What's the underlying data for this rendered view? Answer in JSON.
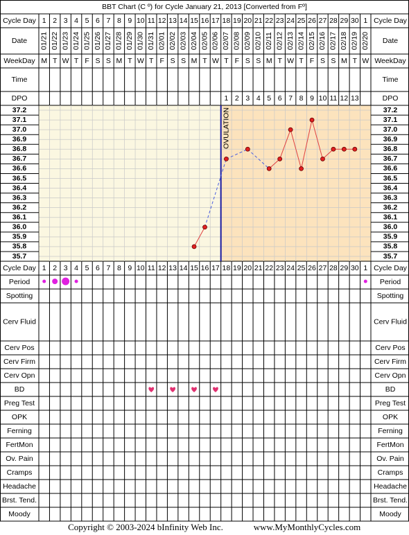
{
  "chart_data": {
    "type": "bbt",
    "title": "BBT Chart (C º) for Cycle January 21, 2013  [Converted from Fº]",
    "cycle_days": [
      1,
      2,
      3,
      4,
      5,
      6,
      7,
      8,
      9,
      10,
      11,
      12,
      13,
      14,
      15,
      16,
      17,
      18,
      19,
      20,
      21,
      22,
      23,
      24,
      25,
      26,
      27,
      28,
      29,
      30,
      1
    ],
    "dates": [
      "01/21",
      "01/22",
      "01/23",
      "01/24",
      "01/25",
      "01/26",
      "01/27",
      "01/28",
      "01/29",
      "01/30",
      "01/31",
      "02/01",
      "02/02",
      "02/03",
      "02/04",
      "02/05",
      "02/06",
      "02/07",
      "02/08",
      "02/09",
      "02/10",
      "02/11",
      "02/12",
      "02/13",
      "02/14",
      "02/15",
      "02/16",
      "02/17",
      "02/18",
      "02/19",
      "02/20"
    ],
    "weekdays": [
      "M",
      "T",
      "W",
      "T",
      "F",
      "S",
      "S",
      "M",
      "T",
      "W",
      "T",
      "F",
      "S",
      "S",
      "M",
      "T",
      "W",
      "T",
      "F",
      "S",
      "S",
      "M",
      "T",
      "W",
      "T",
      "F",
      "S",
      "S",
      "M",
      "T",
      "W"
    ],
    "dpo": [
      null,
      null,
      null,
      null,
      null,
      null,
      null,
      null,
      null,
      null,
      null,
      null,
      null,
      null,
      null,
      null,
      null,
      1,
      2,
      3,
      4,
      5,
      6,
      7,
      8,
      9,
      10,
      11,
      12,
      13,
      null
    ],
    "values": [
      null,
      null,
      null,
      null,
      null,
      null,
      null,
      null,
      null,
      null,
      null,
      null,
      null,
      null,
      35.8,
      36.0,
      null,
      36.7,
      null,
      36.8,
      null,
      36.6,
      36.7,
      37.0,
      36.6,
      37.1,
      36.7,
      36.8,
      36.8,
      36.8,
      null
    ],
    "ylim": [
      35.65,
      37.25
    ],
    "yticks": [
      37.2,
      37.1,
      {
        "value": 37,
        "label": "37.0"
      },
      36.9,
      36.8,
      36.7,
      36.6,
      36.5,
      36.4,
      36.3,
      36.2,
      36.1,
      {
        "value": 36,
        "label": "36.0"
      },
      35.9,
      35.8,
      35.7
    ],
    "ovulation_day": 17,
    "ovulation_label": "OVULATION",
    "top_rows": [
      "Cycle Day",
      "Date",
      "WeekDay",
      "Time",
      "DPO"
    ],
    "bottom_rows": [
      "Cycle Day",
      "Period",
      "Spotting",
      "Cerv Fluid",
      "Cerv Pos",
      "Cerv Firm",
      "Cerv Opn",
      "BD",
      "Preg Test",
      "OPK",
      "Ferning",
      "FertMon",
      "Ov. Pain",
      "Cramps",
      "Headache",
      "Brst. Tend.",
      "Moody"
    ],
    "period": [
      1,
      2,
      3,
      1,
      null,
      null,
      null,
      null,
      null,
      null,
      null,
      null,
      null,
      null,
      null,
      null,
      null,
      null,
      null,
      null,
      null,
      null,
      null,
      null,
      null,
      null,
      null,
      null,
      null,
      null,
      1
    ],
    "bd_days": [
      11,
      13,
      15,
      17
    ],
    "copyright": "Copyright © 2003-2024 bInfinity Web Inc.",
    "website": "www.MyMonthlyCycles.com"
  }
}
